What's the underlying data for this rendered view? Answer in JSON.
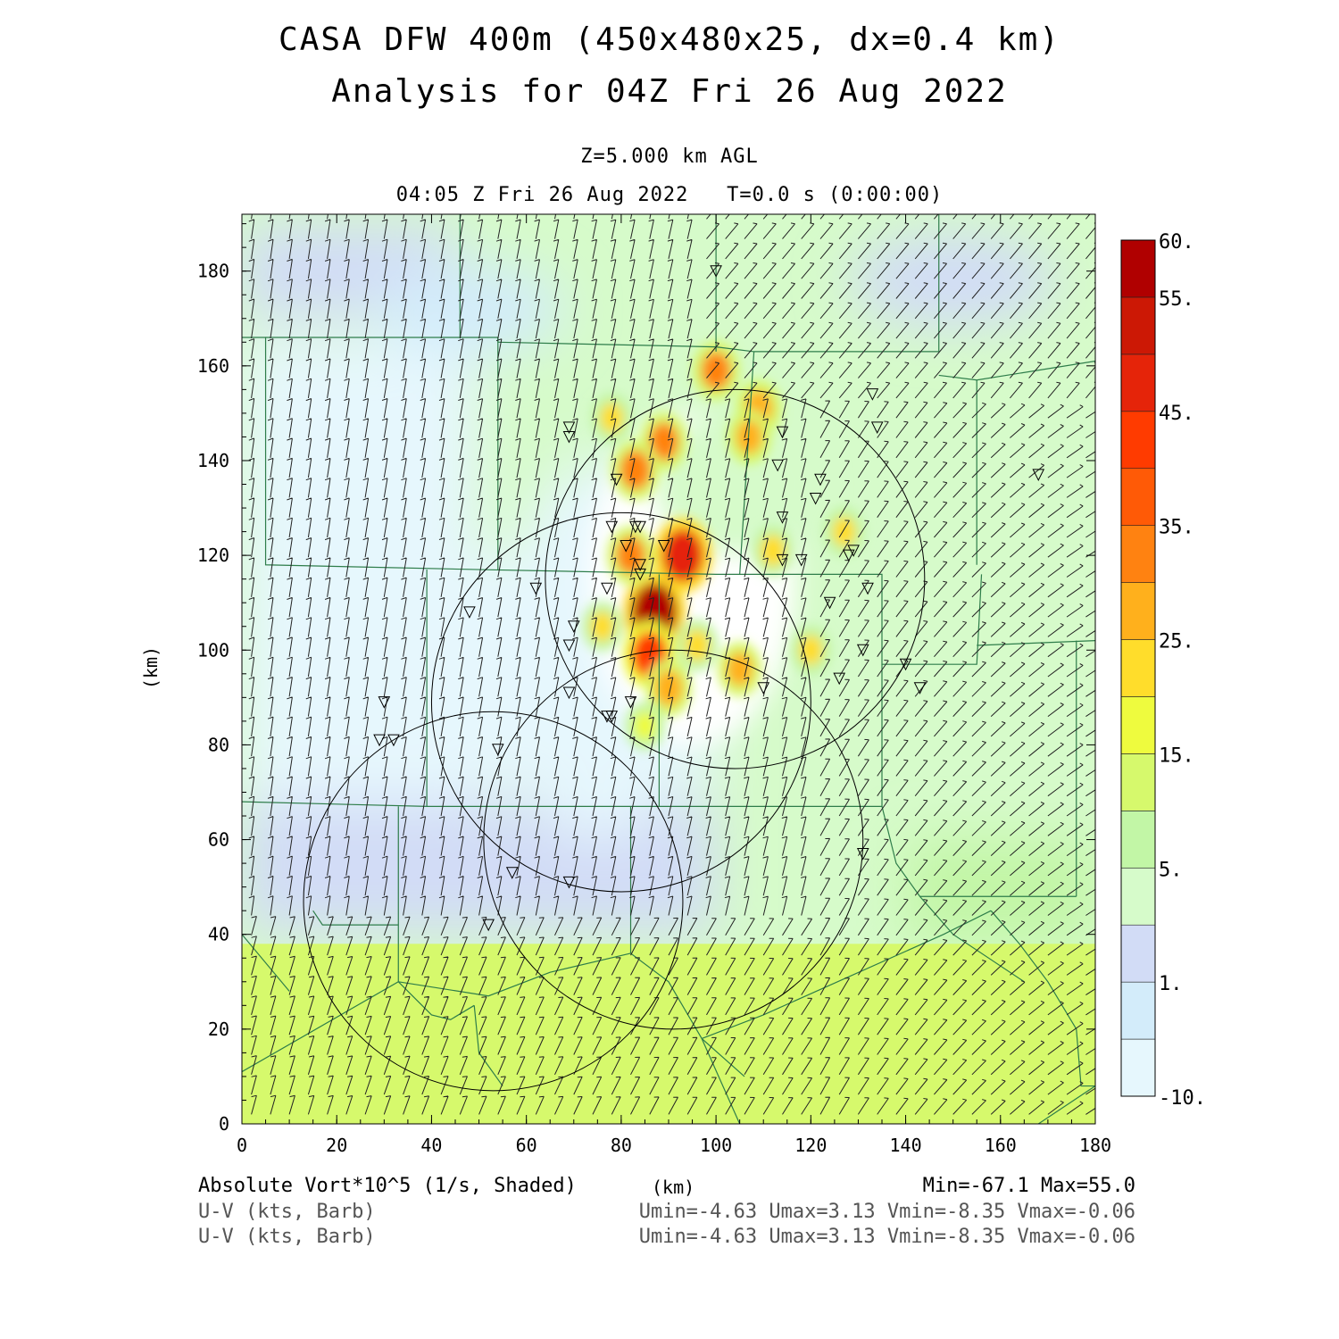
{
  "title": {
    "line1": "CASA DFW 400m (450x480x25, dx=0.4 km)",
    "line2": "Analysis for 04Z Fri 26 Aug 2022"
  },
  "subtitle": {
    "level": "Z=5.000 km AGL",
    "time": "04:05 Z Fri 26 Aug 2022   T=0.0 s (0:00:00)"
  },
  "footer": {
    "field_label": "Absolute Vort*10^5 (1/s, Shaded)",
    "x_unit": "(km)",
    "field_range": "Min=-67.1 Max=55.0",
    "barb1_label": "U-V (kts, Barb)",
    "barb1_range": "Umin=-4.63 Umax=3.13 Vmin=-8.35 Vmax=-0.06",
    "barb2_label": "U-V (kts, Barb)",
    "barb2_range": "Umin=-4.63 Umax=3.13 Vmin=-8.35 Vmax=-0.06"
  },
  "chart_data": {
    "type": "heatmap",
    "xlabel": "",
    "ylabel": "(km)",
    "xlim": [
      0,
      180
    ],
    "ylim": [
      0,
      192
    ],
    "x_ticks": [
      0,
      20,
      40,
      60,
      80,
      100,
      120,
      140,
      160,
      180
    ],
    "y_ticks": [
      0,
      20,
      40,
      60,
      80,
      100,
      120,
      140,
      160,
      180
    ],
    "colorbar": {
      "labels": [
        "-10.",
        "1.",
        "5.",
        "15.",
        "25.",
        "35.",
        "45.",
        "55.",
        "60."
      ],
      "bins": [
        "#e6f7fd",
        "#d3ecfa",
        "#d2dcf6",
        "#d6fbca",
        "#c2f6a6",
        "#d6f96c",
        "#eefb3e",
        "#ffdd2b",
        "#ffb01c",
        "#ff8211",
        "#ff5a06",
        "#ff3b00",
        "#e52409",
        "#cc1805",
        "#b00000"
      ]
    },
    "vorticity_cores": [
      {
        "x": 87,
        "y": 108,
        "value": 55
      },
      {
        "x": 93,
        "y": 120,
        "value": 48
      },
      {
        "x": 86,
        "y": 99,
        "value": 40
      },
      {
        "x": 100,
        "y": 159,
        "value": 30
      },
      {
        "x": 109,
        "y": 151,
        "value": 28
      },
      {
        "x": 89,
        "y": 144,
        "value": 30
      },
      {
        "x": 83,
        "y": 138,
        "value": 32
      },
      {
        "x": 107,
        "y": 145,
        "value": 25
      },
      {
        "x": 90,
        "y": 92,
        "value": 28
      },
      {
        "x": 105,
        "y": 96,
        "value": 25
      },
      {
        "x": 82,
        "y": 120,
        "value": 30
      },
      {
        "x": 96,
        "y": 101,
        "value": 22
      },
      {
        "x": 78,
        "y": 149,
        "value": 20
      },
      {
        "x": 112,
        "y": 121,
        "value": 22
      },
      {
        "x": 127,
        "y": 125,
        "value": 20
      },
      {
        "x": 85,
        "y": 84,
        "value": 18
      },
      {
        "x": 120,
        "y": 100,
        "value": 20
      },
      {
        "x": 76,
        "y": 105,
        "value": 20
      }
    ],
    "radar_rings": [
      {
        "cx": 104,
        "cy": 115,
        "r": 40
      },
      {
        "cx": 80,
        "cy": 89,
        "r": 40
      },
      {
        "cx": 91,
        "cy": 60,
        "r": 40
      },
      {
        "cx": 53,
        "cy": 47,
        "r": 40
      }
    ],
    "stations": [
      {
        "x": 100,
        "y": 180
      },
      {
        "x": 133,
        "y": 154
      },
      {
        "x": 134,
        "y": 147
      },
      {
        "x": 69,
        "y": 147
      },
      {
        "x": 69,
        "y": 145
      },
      {
        "x": 114,
        "y": 146
      },
      {
        "x": 113,
        "y": 139
      },
      {
        "x": 122,
        "y": 136
      },
      {
        "x": 121,
        "y": 132
      },
      {
        "x": 168,
        "y": 137
      },
      {
        "x": 79,
        "y": 136
      },
      {
        "x": 114,
        "y": 128
      },
      {
        "x": 78,
        "y": 126
      },
      {
        "x": 83,
        "y": 126
      },
      {
        "x": 84,
        "y": 126
      },
      {
        "x": 81,
        "y": 122
      },
      {
        "x": 89,
        "y": 122
      },
      {
        "x": 129,
        "y": 121
      },
      {
        "x": 128,
        "y": 120
      },
      {
        "x": 114,
        "y": 119
      },
      {
        "x": 118,
        "y": 119
      },
      {
        "x": 84,
        "y": 118
      },
      {
        "x": 84,
        "y": 116
      },
      {
        "x": 62,
        "y": 113
      },
      {
        "x": 77,
        "y": 113
      },
      {
        "x": 132,
        "y": 113
      },
      {
        "x": 124,
        "y": 110
      },
      {
        "x": 48,
        "y": 108
      },
      {
        "x": 70,
        "y": 105
      },
      {
        "x": 69,
        "y": 101
      },
      {
        "x": 131,
        "y": 100
      },
      {
        "x": 140,
        "y": 97
      },
      {
        "x": 126,
        "y": 94
      },
      {
        "x": 110,
        "y": 92
      },
      {
        "x": 143,
        "y": 92
      },
      {
        "x": 69,
        "y": 91
      },
      {
        "x": 82,
        "y": 89
      },
      {
        "x": 30,
        "y": 89
      },
      {
        "x": 77,
        "y": 86
      },
      {
        "x": 78,
        "y": 86
      },
      {
        "x": 29,
        "y": 81
      },
      {
        "x": 32,
        "y": 81
      },
      {
        "x": 54,
        "y": 79
      },
      {
        "x": 131,
        "y": 57
      },
      {
        "x": 57,
        "y": 53
      },
      {
        "x": 69,
        "y": 51
      },
      {
        "x": 52,
        "y": 42
      }
    ],
    "wind_units": "kts",
    "wind_u_range": [
      -4.63,
      3.13
    ],
    "wind_v_range": [
      -8.35,
      -0.06
    ],
    "grid": false
  }
}
